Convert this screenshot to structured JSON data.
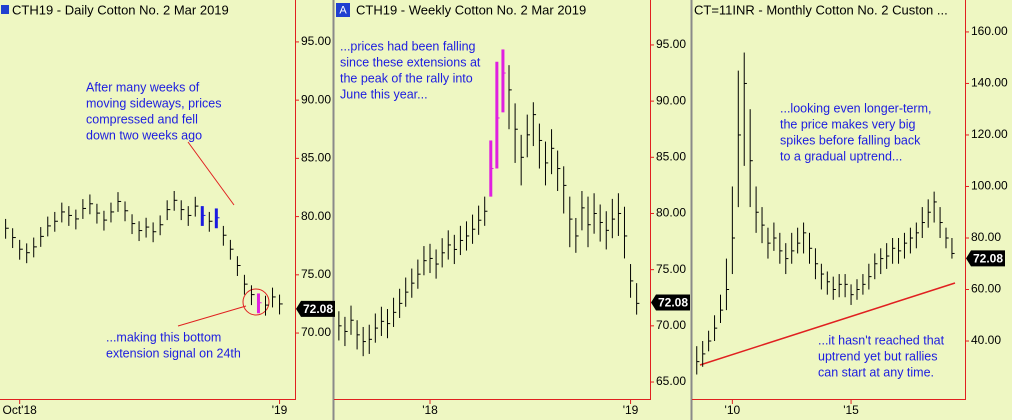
{
  "chart_data": [
    {
      "type": "ohlc",
      "title": "CTH19 - Daily  Cotton No. 2 Mar 2019",
      "categories": [
        null,
        null,
        "Oct'18",
        null,
        null,
        null,
        null,
        null,
        null,
        null,
        null,
        null,
        null,
        null,
        null,
        null,
        null,
        null,
        null,
        null,
        null,
        null,
        null,
        null,
        null,
        null,
        null,
        null,
        null,
        null,
        null,
        null,
        null,
        null,
        null,
        null,
        null,
        null,
        null,
        "'19"
      ],
      "high": [
        79.8,
        79.0,
        78.0,
        77.7,
        78.2,
        79.1,
        80.0,
        80.4,
        81.2,
        80.9,
        80.6,
        81.5,
        81.9,
        81.1,
        80.5,
        81.2,
        82.1,
        81.3,
        80.2,
        79.6,
        79.9,
        79.5,
        80.1,
        81.4,
        82.2,
        81.4,
        80.9,
        81.7,
        80.9,
        80.4,
        80.7,
        79.2,
        78.0,
        76.6,
        75.0,
        74.1,
        73.4,
        73.2,
        73.9,
        73.3
      ],
      "low": [
        78.1,
        77.3,
        76.3,
        76.0,
        76.5,
        77.4,
        78.3,
        78.7,
        79.5,
        79.2,
        78.9,
        79.8,
        80.2,
        79.4,
        78.8,
        79.5,
        80.4,
        79.6,
        78.5,
        77.9,
        78.2,
        77.8,
        78.4,
        79.7,
        80.5,
        79.7,
        79.2,
        80.0,
        79.2,
        78.7,
        79.0,
        77.5,
        76.3,
        74.9,
        73.3,
        72.4,
        71.7,
        71.5,
        72.2,
        71.6
      ],
      "close": [
        79.0,
        78.2,
        77.2,
        76.9,
        77.4,
        78.3,
        79.2,
        79.6,
        80.4,
        80.1,
        79.8,
        80.7,
        81.1,
        80.3,
        79.7,
        80.4,
        81.3,
        80.5,
        79.4,
        78.8,
        79.1,
        78.7,
        79.3,
        80.6,
        81.4,
        80.6,
        80.1,
        80.9,
        80.1,
        79.6,
        79.9,
        78.4,
        77.2,
        75.8,
        74.2,
        73.3,
        72.6,
        72.4,
        73.1,
        72.5
      ],
      "colors": [
        "#000",
        "#000",
        "#000",
        "#000",
        "#000",
        "#000",
        "#000",
        "#000",
        "#000",
        "#000",
        "#000",
        "#000",
        "#000",
        "#000",
        "#000",
        "#000",
        "#000",
        "#000",
        "#000",
        "#000",
        "#000",
        "#000",
        "#000",
        "#000",
        "#000",
        "#000",
        "#000",
        "#000",
        "#1a1ae0",
        "#000",
        "#1a1ae0",
        "#000",
        "#000",
        "#000",
        "#000",
        "#000",
        "#e020e0",
        "#000",
        "#000",
        "#000"
      ],
      "ylim": [
        64.25,
        98.6
      ],
      "yticks": [
        {
          "value": 70,
          "label": "70.00"
        },
        {
          "value": 75,
          "label": "75.00"
        },
        {
          "value": 80,
          "label": "80.00"
        },
        {
          "value": 85,
          "label": "85.00"
        },
        {
          "value": 90,
          "label": "90.00"
        },
        {
          "value": 95,
          "label": "95.00"
        }
      ],
      "last": 72.08,
      "annotations": [
        [
          "After many weeks of",
          "moving sideways, prices",
          "compressed and fell",
          "down two weeks ago"
        ],
        [
          "...making this bottom",
          "extension signal on 24th"
        ]
      ]
    },
    {
      "type": "ohlc",
      "title": "CTH19 - Weekly  Cotton No. 2 Mar 2019",
      "badge": "A",
      "categories": [
        null,
        null,
        null,
        null,
        null,
        null,
        null,
        null,
        null,
        null,
        null,
        null,
        null,
        null,
        null,
        "'18",
        null,
        null,
        null,
        null,
        null,
        null,
        null,
        null,
        null,
        null,
        null,
        null,
        null,
        null,
        null,
        null,
        null,
        null,
        null,
        null,
        null,
        null,
        null,
        null,
        null,
        null,
        null,
        null,
        null,
        null,
        null,
        null,
        "'19",
        null
      ],
      "high": [
        71.3,
        70.8,
        71.8,
        70.5,
        69.9,
        70.1,
        71.1,
        71.7,
        71.5,
        72.5,
        73.3,
        74.3,
        75.1,
        75.9,
        77.1,
        77.3,
        76.8,
        77.8,
        78.5,
        78.1,
        78.9,
        79.3,
        79.9,
        80.7,
        81.5,
        86.5,
        93.5,
        94.6,
        93.2,
        89.8,
        87.0,
        88.8,
        89.9,
        88.0,
        86.4,
        87.5,
        85.6,
        84.2,
        81.5,
        79.6,
        82.0,
        81.5,
        81.8,
        80.8,
        80.2,
        81.3,
        81.8,
        80.6,
        75.5,
        73.8
      ],
      "low": [
        68.7,
        68.2,
        69.2,
        67.9,
        67.3,
        67.5,
        68.5,
        69.1,
        68.9,
        69.9,
        70.7,
        71.7,
        72.5,
        73.3,
        74.5,
        74.7,
        74.2,
        75.2,
        75.9,
        75.5,
        76.3,
        76.7,
        77.3,
        78.1,
        78.9,
        81.5,
        84.0,
        89.0,
        87.5,
        84.5,
        82.5,
        85.0,
        86.0,
        84.0,
        82.5,
        83.5,
        82.0,
        80.0,
        77.0,
        76.5,
        78.5,
        77.0,
        78.2,
        77.5,
        76.8,
        77.8,
        78.0,
        76.0,
        72.5,
        71.0
      ],
      "close": [
        70.0,
        69.5,
        70.5,
        69.2,
        68.6,
        68.8,
        69.8,
        70.4,
        70.2,
        71.2,
        72.0,
        73.0,
        73.8,
        74.6,
        75.8,
        76.0,
        75.5,
        76.5,
        77.2,
        76.8,
        77.6,
        78.0,
        78.6,
        79.4,
        80.2,
        84.0,
        88.5,
        92.5,
        91.0,
        87.5,
        85.0,
        87.0,
        88.8,
        86.5,
        84.5,
        85.8,
        84.0,
        82.5,
        79.5,
        78.0,
        80.5,
        79.0,
        80.0,
        79.2,
        78.5,
        79.5,
        80.0,
        78.0,
        74.0,
        72.0
      ],
      "colors": [
        "#000",
        "#000",
        "#000",
        "#000",
        "#000",
        "#000",
        "#000",
        "#000",
        "#000",
        "#000",
        "#000",
        "#000",
        "#000",
        "#000",
        "#000",
        "#000",
        "#000",
        "#000",
        "#000",
        "#000",
        "#000",
        "#000",
        "#000",
        "#000",
        "#000",
        "#e020e0",
        "#e020e0",
        "#e020e0",
        "#000",
        "#000",
        "#000",
        "#000",
        "#000",
        "#000",
        "#000",
        "#000",
        "#000",
        "#000",
        "#000",
        "#000",
        "#000",
        "#000",
        "#000",
        "#000",
        "#000",
        "#000",
        "#000",
        "#000",
        "#000",
        "#000"
      ],
      "ylim": [
        63.4,
        99
      ],
      "yticks": [
        {
          "value": 65,
          "label": "65.00"
        },
        {
          "value": 70,
          "label": "70.00"
        },
        {
          "value": 75,
          "label": "75.00"
        },
        {
          "value": 80,
          "label": "80.00"
        },
        {
          "value": 85,
          "label": "85.00"
        },
        {
          "value": 90,
          "label": "90.00"
        },
        {
          "value": 95,
          "label": "95.00"
        }
      ],
      "last": 72.08,
      "annotations": [
        [
          "...prices had been falling",
          "since these extensions at",
          "the peak of the rally into",
          "June this year..."
        ]
      ]
    },
    {
      "type": "ohlc",
      "title": "CT=11INR - Monthly  Cotton No. 2 Custon ...",
      "categories": [
        null,
        null,
        null,
        null,
        null,
        null,
        "'10",
        null,
        null,
        null,
        null,
        null,
        null,
        null,
        null,
        null,
        null,
        null,
        null,
        null,
        null,
        null,
        null,
        null,
        null,
        null,
        "'15",
        null,
        null,
        null,
        null,
        null,
        null,
        null,
        null,
        null,
        null,
        null,
        null,
        null,
        null,
        null,
        null,
        null
      ],
      "high": [
        38,
        40,
        44,
        50,
        58,
        72,
        100,
        145,
        152,
        130,
        100,
        92,
        84,
        86,
        82,
        78,
        82,
        84,
        86,
        82,
        76,
        70,
        67,
        65,
        66,
        66,
        62,
        64,
        66,
        70,
        74,
        76,
        78,
        80,
        80,
        82,
        84,
        86,
        92,
        95,
        98,
        92,
        84,
        80
      ],
      "low": [
        27,
        30,
        36,
        40,
        47,
        52,
        66,
        92,
        108,
        92,
        82,
        78,
        72,
        75,
        70,
        66,
        70,
        74,
        74,
        70,
        64,
        60,
        58,
        56,
        57,
        57,
        54,
        56,
        58,
        60,
        64,
        66,
        68,
        70,
        70,
        72,
        74,
        76,
        80,
        84,
        86,
        80,
        76,
        72
      ],
      "close": [
        32,
        35,
        40,
        45,
        52,
        60,
        80,
        120,
        140,
        110,
        90,
        85,
        78,
        80,
        75,
        72,
        75,
        78,
        82,
        76,
        70,
        66,
        63,
        60,
        62,
        62,
        58,
        60,
        62,
        65,
        70,
        72,
        73,
        76,
        75,
        78,
        80,
        82,
        86,
        90,
        94,
        86,
        80,
        74
      ],
      "ylim": [
        17.1,
        172.4
      ],
      "yticks": [
        {
          "value": 40,
          "label": "40.00"
        },
        {
          "value": 60,
          "label": "60.00"
        },
        {
          "value": 80,
          "label": "80.00"
        },
        {
          "value": 100,
          "label": "100.00"
        },
        {
          "value": 120,
          "label": "120.00"
        },
        {
          "value": 140,
          "label": "140.00"
        },
        {
          "value": 160,
          "label": "160.00"
        }
      ],
      "last": 72.08,
      "annotations": [
        [
          "...looking even longer-term,",
          "the price makes very big",
          "spikes before falling back",
          "to a gradual uptrend..."
        ],
        [
          "...it hasn't reached that",
          "uptrend yet but rallies",
          "can start at any time."
        ]
      ]
    }
  ]
}
